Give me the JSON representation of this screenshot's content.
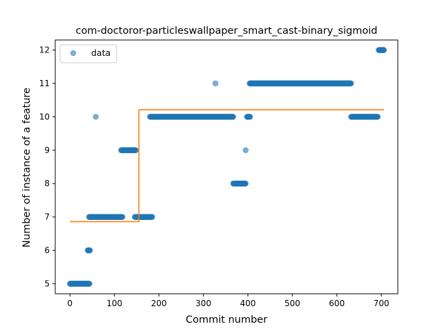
{
  "chart_data": {
    "type": "scatter",
    "title": "com-doctoror-particleswallpaper_smart_cast-binary_sigmoid",
    "xlabel": "Commit number",
    "ylabel": "Number of instance of a feature",
    "xlim": [
      -33,
      737
    ],
    "ylim": [
      4.7,
      12.3
    ],
    "xticks": [
      0,
      100,
      200,
      300,
      400,
      500,
      600,
      700
    ],
    "yticks": [
      5,
      6,
      7,
      8,
      9,
      10,
      11,
      12
    ],
    "grid": false,
    "legend": {
      "position": "top-left",
      "entries": [
        "data"
      ]
    },
    "colors": {
      "data": "#1f77b4",
      "fit": "#ff7f0e"
    },
    "series": [
      {
        "name": "data",
        "kind": "scatter",
        "segments": [
          {
            "x_start": 0,
            "x_end": 44,
            "y": 5
          },
          {
            "x_start": 40,
            "x_end": 45,
            "y": 6
          },
          {
            "x_start": 43,
            "x_end": 118,
            "y": 7
          },
          {
            "x_start": 58,
            "x_end": 58,
            "y": 10
          },
          {
            "x_start": 115,
            "x_end": 148,
            "y": 9
          },
          {
            "x_start": 146,
            "x_end": 185,
            "y": 7
          },
          {
            "x_start": 180,
            "x_end": 367,
            "y": 10
          },
          {
            "x_start": 327,
            "x_end": 327,
            "y": 11
          },
          {
            "x_start": 367,
            "x_end": 395,
            "y": 8
          },
          {
            "x_start": 395,
            "x_end": 395,
            "y": 9
          },
          {
            "x_start": 398,
            "x_end": 405,
            "y": 10
          },
          {
            "x_start": 404,
            "x_end": 632,
            "y": 11
          },
          {
            "x_start": 632,
            "x_end": 692,
            "y": 10
          },
          {
            "x_start": 694,
            "x_end": 706,
            "y": 12
          }
        ]
      },
      {
        "kind": "line",
        "x": [
          0,
          155,
          155,
          706
        ],
        "y": [
          6.86,
          6.86,
          10.21,
          10.21
        ]
      }
    ]
  }
}
